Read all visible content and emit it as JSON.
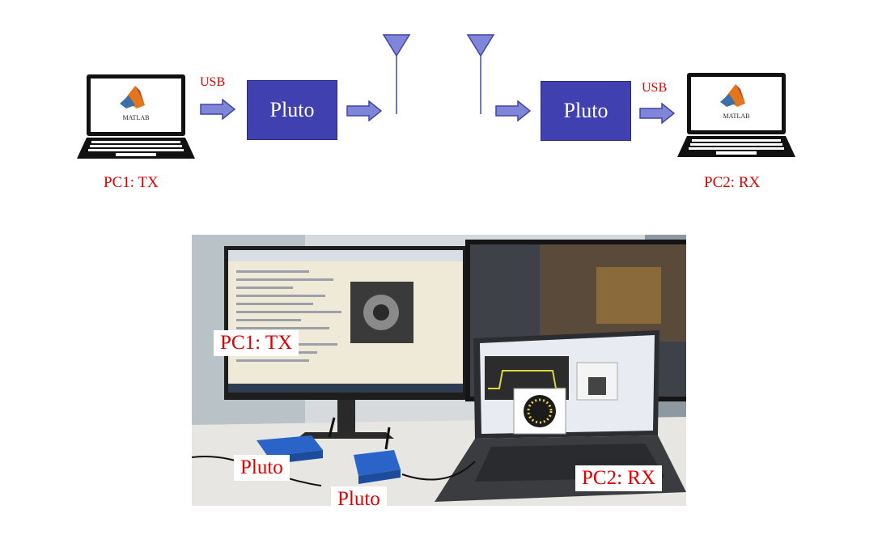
{
  "diagram": {
    "tx_pc_label": "PC1: TX",
    "rx_pc_label": "PC2: RX",
    "tx_usb_label": "USB",
    "rx_usb_label": "USB",
    "tx_pluto_label": "Pluto",
    "rx_pluto_label": "Pluto",
    "matlab_logo_text": "MATLAB"
  },
  "photo": {
    "labels": {
      "pc1": "PC1: TX",
      "pc2": "PC2: RX",
      "pluto_left": "Pluto",
      "pluto_right": "Pluto"
    }
  },
  "colors": {
    "accent_red": "#e00000",
    "pluto_blue": "#4040b0",
    "arrow_fill": "#7f86d8",
    "antenna": "#6f77cf"
  }
}
